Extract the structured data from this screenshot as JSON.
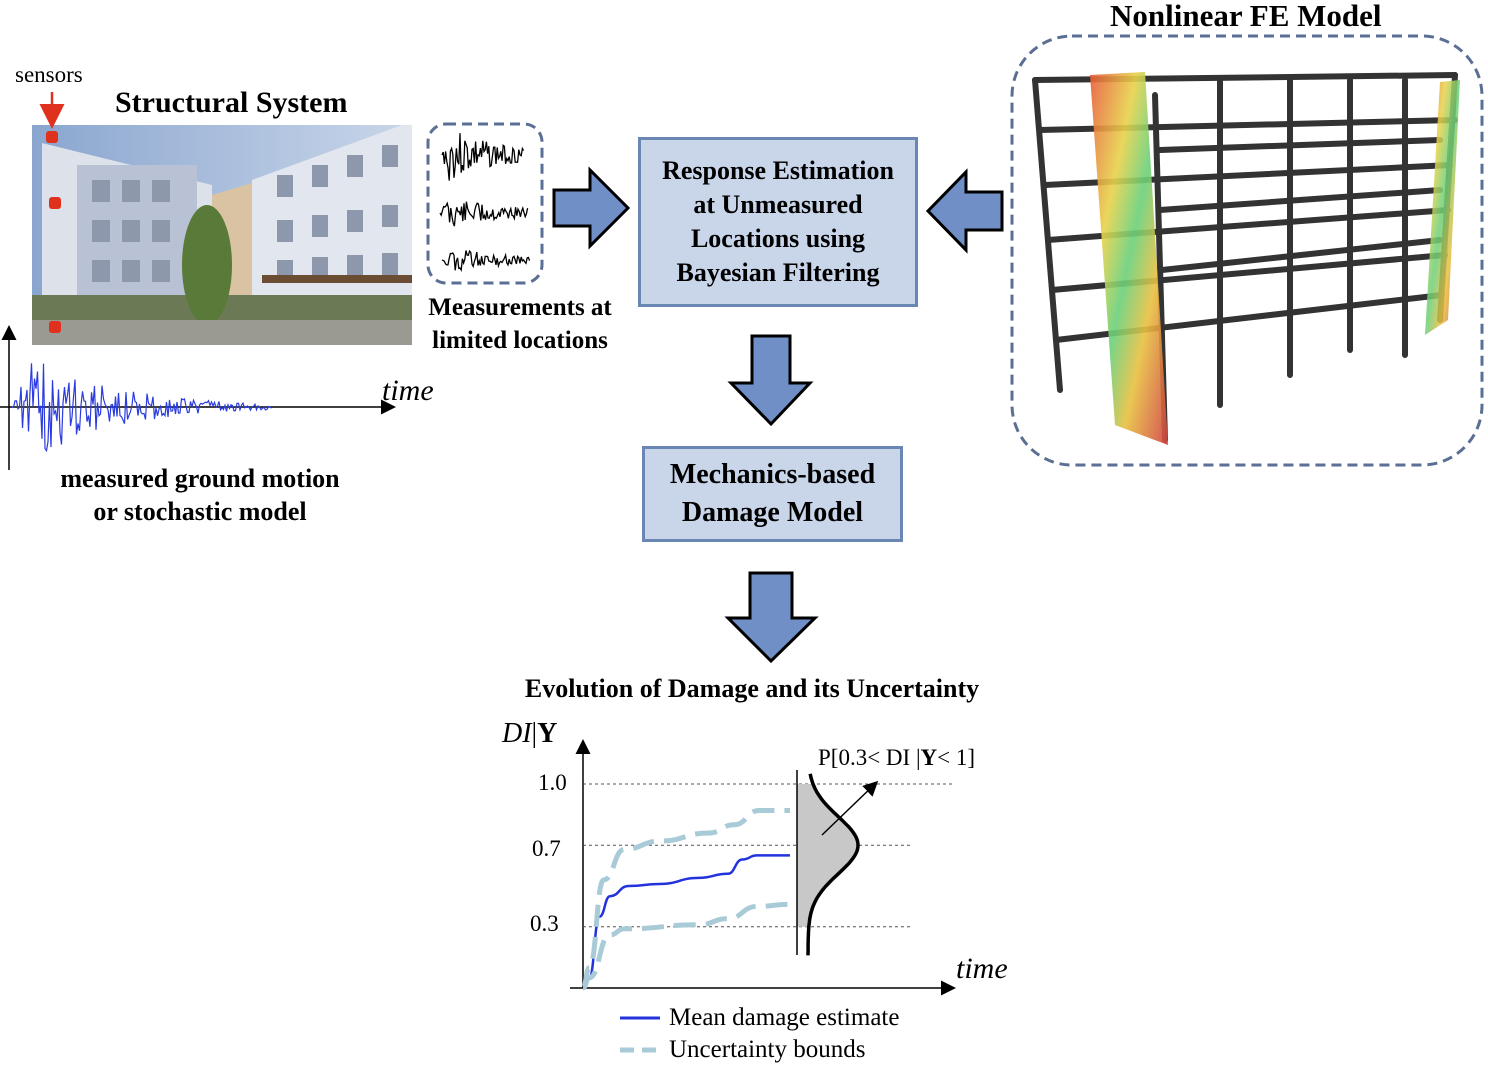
{
  "structural": {
    "sensors_label": "sensors",
    "title": "Structural System",
    "sensor_color": "#e0301e"
  },
  "ground_motion": {
    "axis_label": "time",
    "caption_line1": "measured ground motion",
    "caption_line2": "or stochastic model",
    "color": "#2a3be0"
  },
  "measurements": {
    "caption_line1": "Measurements at",
    "caption_line2": "limited locations"
  },
  "estimation_box": {
    "lines": [
      "Response Estimation",
      "at Unmeasured",
      "Locations using",
      "Bayesian Filtering"
    ]
  },
  "damage_box": {
    "lines": [
      "Mechanics-based",
      "Damage Model"
    ]
  },
  "fe_model": {
    "title": "Nonlinear FE Model"
  },
  "colors": {
    "box_fill": "#c9d6ea",
    "box_border": "#6a86b3",
    "arrow_fill": "#6f8fc6",
    "dashed_border": "#5a6f93"
  },
  "chart_data": {
    "type": "line",
    "title": "Evolution of Damage and its Uncertainty",
    "ylabel_italic": "DI",
    "ylabel_sep": "|",
    "ylabel_bold": "Y",
    "xlabel": "time",
    "yticks": [
      "1.0",
      "0.7",
      "0.3"
    ],
    "ytick_values": [
      1.0,
      0.7,
      0.3
    ],
    "ylim": [
      0,
      1.0
    ],
    "xlim": [
      0,
      18
    ],
    "grid": "dashed horizontal at ticks",
    "annotation": {
      "prefix": "P[0.3< DI |",
      "bold": "Y",
      "suffix": "< 1]"
    },
    "series": [
      {
        "name": "Mean damage estimate",
        "style": "solid",
        "color": "#2233dd",
        "x": [
          0,
          0.3,
          0.8,
          1.3,
          2.2,
          3.7,
          5.6,
          7.0,
          7.7,
          8.4,
          10.0
        ],
        "y": [
          0,
          0.05,
          0.35,
          0.45,
          0.5,
          0.51,
          0.54,
          0.56,
          0.63,
          0.65,
          0.65
        ]
      },
      {
        "name": "Uncertainty bounds",
        "style": "dashed",
        "color": "#a9cbd8",
        "x": [
          0,
          0.3,
          1.0,
          2.0,
          3.7,
          6.1,
          7.3,
          8.5,
          10.0
        ],
        "y": [
          0,
          0.1,
          0.53,
          0.68,
          0.72,
          0.76,
          0.8,
          0.87,
          0.87
        ]
      },
      {
        "name": "",
        "style": "dashed",
        "color": "#a9cbd8",
        "x": [
          0,
          0.3,
          1.3,
          2.0,
          5.6,
          7.0,
          8.4,
          10.0
        ],
        "y": [
          0,
          0.05,
          0.26,
          0.29,
          0.31,
          0.34,
          0.4,
          0.41
        ]
      }
    ],
    "distribution": {
      "mean": 0.7,
      "fill_range": [
        0.3,
        1.0
      ],
      "fill_color": "#c8c8c8"
    },
    "legend_placement": "bottom"
  }
}
